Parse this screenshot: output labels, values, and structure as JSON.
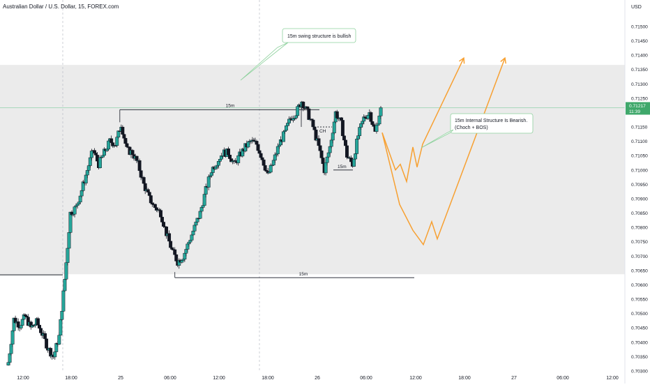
{
  "chart_title": "Australian Dollar / U.S. Dollar, 15, FOREX.com",
  "currency": "USD",
  "current_price": "0.71217",
  "countdown": "11:39",
  "colors": {
    "up": "#26a69a",
    "down": "#131722",
    "zone": "#ebebeb",
    "projection": "#f7a031",
    "price_line": "#9fd6b5",
    "price_label": "#3fa86b"
  },
  "chart_data": {
    "type": "candlestick",
    "ylim": [
      0.703,
      0.7158
    ],
    "x_labels": [
      "12:00",
      "18:00",
      "25",
      "06:00",
      "12:00",
      "18:00",
      "26",
      "06:00",
      "12:00",
      "18:00",
      "27",
      "06:00",
      "12:00"
    ],
    "y_ticks": [
      "0.71500",
      "0.71450",
      "0.71400",
      "0.71350",
      "0.71300",
      "0.71250",
      "0.71200",
      "0.71150",
      "0.71100",
      "0.71050",
      "0.71000",
      "0.70950",
      "0.70900",
      "0.70850",
      "0.70800",
      "0.70750",
      "0.70700",
      "0.70650",
      "0.70600",
      "0.70550",
      "0.70500",
      "0.70450",
      "0.70400",
      "0.70350",
      "0.70300"
    ],
    "y_tick_values": [
      0.715,
      0.7145,
      0.714,
      0.7135,
      0.713,
      0.7125,
      0.712,
      0.7115,
      0.711,
      0.7105,
      0.71,
      0.7095,
      0.709,
      0.7085,
      0.708,
      0.7075,
      0.707,
      0.7065,
      0.706,
      0.7055,
      0.705,
      0.7045,
      0.704,
      0.7035,
      0.703
    ],
    "zone": {
      "top": 0.71366,
      "bottom": 0.70637
    },
    "close_path": [
      0.7033,
      0.7048,
      0.7046,
      0.7049,
      0.7045,
      0.7047,
      0.7043,
      0.7038,
      0.7035,
      0.7042,
      0.7062,
      0.7085,
      0.7087,
      0.7093,
      0.71,
      0.7107,
      0.7102,
      0.7106,
      0.711,
      0.7109,
      0.7116,
      0.7107,
      0.7106,
      0.7102,
      0.7095,
      0.709,
      0.7087,
      0.7085,
      0.7078,
      0.7072,
      0.7068,
      0.707,
      0.7075,
      0.708,
      0.7085,
      0.7093,
      0.71,
      0.7103,
      0.7106,
      0.7106,
      0.7102,
      0.7105,
      0.7108,
      0.711,
      0.7109,
      0.7104,
      0.7098,
      0.7103,
      0.7109,
      0.7113,
      0.7118,
      0.712,
      0.7124,
      0.712,
      0.7115,
      0.7108,
      0.71,
      0.7108,
      0.712,
      0.7116,
      0.7105,
      0.7102,
      0.7112,
      0.7118,
      0.712,
      0.7113,
      0.71217
    ],
    "swing_high": {
      "value": 0.7121,
      "label": "15m"
    },
    "swing_low": {
      "value": 0.70625,
      "label": "15m"
    },
    "internal_high": {
      "value": 0.7122
    },
    "choch_label": "CH",
    "internal_low": {
      "value": 0.71,
      "label": "15m"
    },
    "projection_a": [
      0.7113,
      0.71,
      0.7102,
      0.7096,
      0.7108,
      0.7101,
      0.7109,
      0.7139
    ],
    "projection_b": [
      0.7113,
      0.7088,
      0.7079,
      0.7074,
      0.7082,
      0.7076,
      0.7139
    ]
  },
  "annotations": [
    {
      "text": "15m swing structure is bullish"
    },
    {
      "text": "15m Internal Structure Is Bearish.",
      "text2": "(Choch + BOS)"
    }
  ]
}
